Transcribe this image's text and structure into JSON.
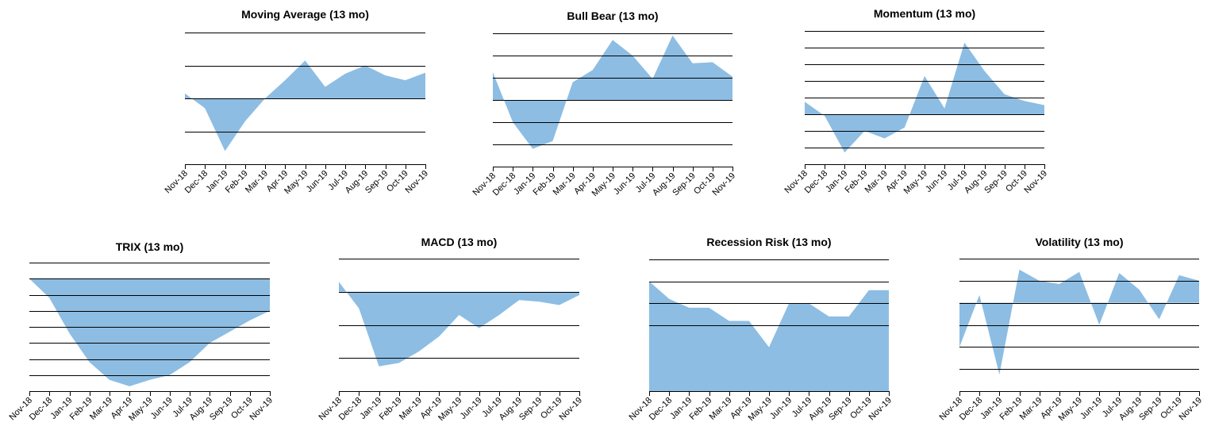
{
  "chart_data": [
    {
      "type": "area",
      "title": "Moving Average (13 mo)",
      "categories": [
        "Nov-18",
        "Dec-18",
        "Jan-19",
        "Feb-19",
        "Mar-19",
        "Apr-19",
        "May-19",
        "Jun-19",
        "Jul-19",
        "Aug-19",
        "Sep-19",
        "Oct-19",
        "Nov-19"
      ],
      "values": [
        0.15,
        -0.3,
        -1.6,
        -0.7,
        0.0,
        0.55,
        1.15,
        0.35,
        0.75,
        1.0,
        0.7,
        0.55,
        0.78
      ],
      "ylim": [
        -2,
        2
      ],
      "baseline": 0,
      "grid_values": [
        -1,
        0,
        1,
        2
      ],
      "color": "#8dbde3"
    },
    {
      "type": "area",
      "title": "Bull Bear (13 mo)",
      "categories": [
        "Nov-18",
        "Dec-18",
        "Jan-19",
        "Feb-19",
        "Mar-19",
        "Apr-19",
        "May-19",
        "Jun-19",
        "Jul-19",
        "Aug-19",
        "Sep-19",
        "Oct-19",
        "Nov-19"
      ],
      "values": [
        1.25,
        -1.0,
        -2.2,
        -1.85,
        0.8,
        1.35,
        2.7,
        2.0,
        0.95,
        2.9,
        1.65,
        1.7,
        1.05
      ],
      "ylim": [
        -3,
        3
      ],
      "baseline": 0,
      "grid_values": [
        -2,
        -1,
        0,
        1,
        2,
        3
      ],
      "color": "#8dbde3"
    },
    {
      "type": "area",
      "title": "Momentum (13 mo)",
      "categories": [
        "Nov-18",
        "Dec-18",
        "Jan-19",
        "Feb-19",
        "Mar-19",
        "Apr-19",
        "May-19",
        "Jun-19",
        "Jul-19",
        "Aug-19",
        "Sep-19",
        "Oct-19",
        "Nov-19"
      ],
      "values": [
        0.75,
        -0.1,
        -2.3,
        -1.0,
        -1.45,
        -0.8,
        2.3,
        0.35,
        4.3,
        2.6,
        1.2,
        0.8,
        0.55
      ],
      "ylim": [
        -3,
        5
      ],
      "baseline": 0,
      "grid_values": [
        -2,
        -1,
        0,
        1,
        2,
        3,
        4,
        5
      ],
      "color": "#8dbde3"
    },
    {
      "type": "area",
      "title": "TRIX (13 mo)",
      "categories": [
        "Nov-18",
        "Dec-18",
        "Jan-19",
        "Feb-19",
        "Mar-19",
        "Apr-19",
        "May-19",
        "Jun-19",
        "Jul-19",
        "Aug-19",
        "Sep-19",
        "Oct-19",
        "Nov-19"
      ],
      "values": [
        0.0,
        -1.2,
        -3.4,
        -5.2,
        -6.3,
        -6.7,
        -6.3,
        -6.0,
        -5.2,
        -4.0,
        -3.3,
        -2.6,
        -2.0
      ],
      "ylim": [
        -7,
        1
      ],
      "baseline": 0,
      "grid_values": [
        -6,
        -5,
        -4,
        -3,
        -2,
        -1,
        0,
        1
      ],
      "color": "#8dbde3"
    },
    {
      "type": "area",
      "title": "MACD (13 mo)",
      "categories": [
        "Nov-18",
        "Dec-18",
        "Jan-19",
        "Feb-19",
        "Mar-19",
        "Apr-19",
        "May-19",
        "Jun-19",
        "Jul-19",
        "Aug-19",
        "Sep-19",
        "Oct-19",
        "Nov-19"
      ],
      "values": [
        0.3,
        -0.5,
        -2.25,
        -2.15,
        -1.8,
        -1.35,
        -0.7,
        -1.1,
        -0.7,
        -0.25,
        -0.3,
        -0.4,
        -0.1
      ],
      "ylim": [
        -3,
        1
      ],
      "baseline": 0,
      "grid_values": [
        -2,
        -1,
        0,
        1
      ],
      "color": "#8dbde3"
    },
    {
      "type": "area",
      "title": "Recession Risk (13 mo)",
      "categories": [
        "Nov-18",
        "Dec-18",
        "Jan-19",
        "Feb-19",
        "Mar-19",
        "Apr-19",
        "May-19",
        "Jun-19",
        "Jul-19",
        "Aug-19",
        "Sep-19",
        "Oct-19",
        "Nov-19"
      ],
      "values": [
        5.0,
        4.2,
        3.8,
        3.8,
        3.2,
        3.2,
        2.0,
        4.0,
        4.0,
        3.4,
        3.4,
        4.6,
        4.6
      ],
      "ylim": [
        0,
        6
      ],
      "baseline": 0,
      "grid_values": [
        3,
        4,
        5,
        6
      ],
      "color": "#8dbde3"
    },
    {
      "type": "area",
      "title": "Volatility (13 mo)",
      "categories": [
        "Nov-18",
        "Dec-18",
        "Jan-19",
        "Feb-19",
        "Mar-19",
        "Apr-19",
        "May-19",
        "Jun-19",
        "Jul-19",
        "Aug-19",
        "Sep-19",
        "Oct-19",
        "Nov-19"
      ],
      "values": [
        -2.0,
        0.35,
        -3.25,
        1.5,
        1.0,
        0.85,
        1.4,
        -1.0,
        1.35,
        0.6,
        -0.75,
        1.25,
        1.0
      ],
      "ylim": [
        -4,
        2
      ],
      "baseline": 0,
      "grid_values": [
        -3,
        -2,
        -1,
        0,
        1,
        2
      ],
      "color": "#8dbde3"
    }
  ]
}
